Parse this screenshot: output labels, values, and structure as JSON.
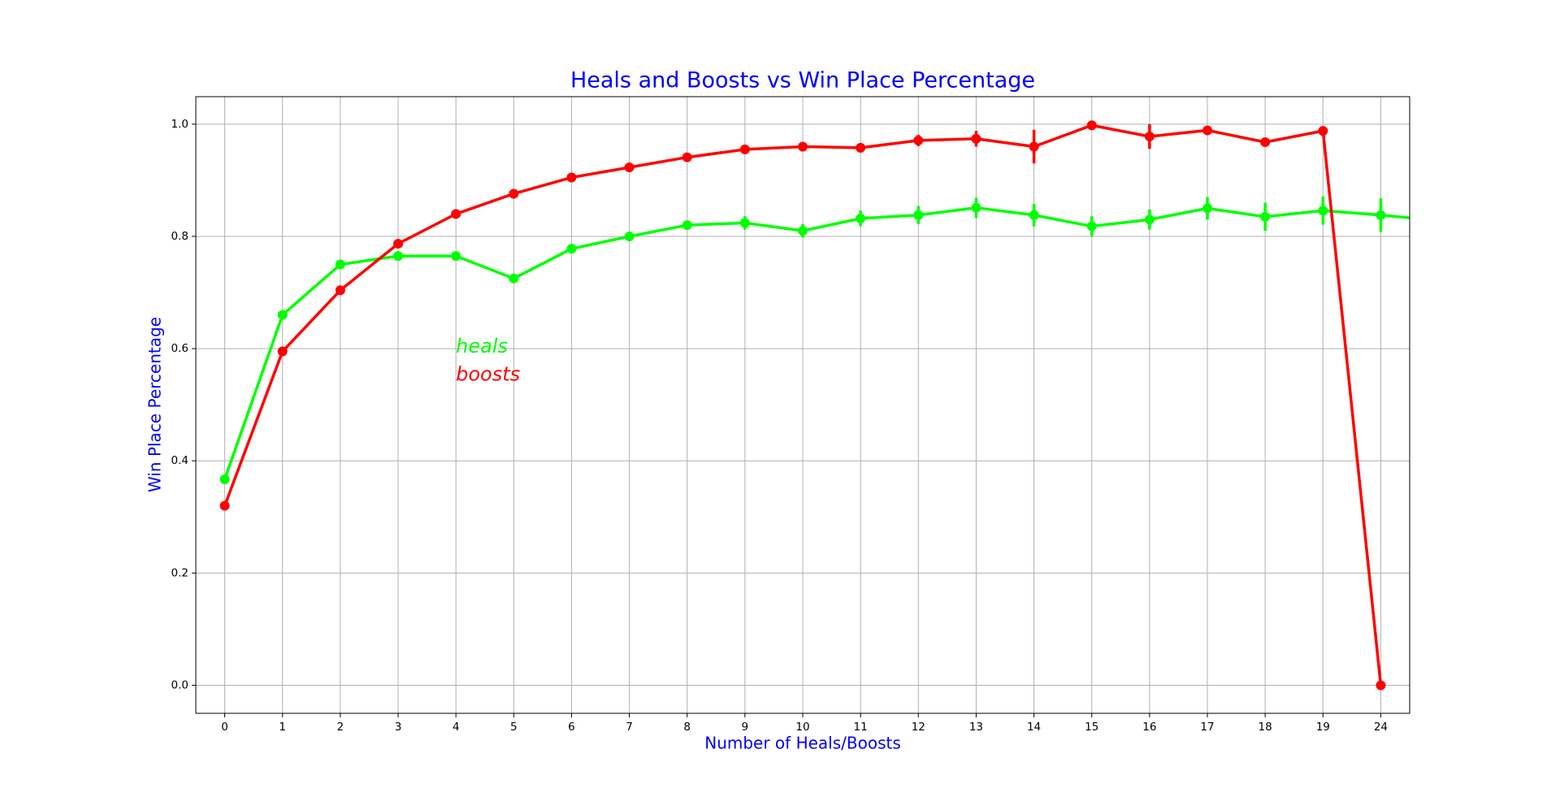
{
  "chart_data": {
    "type": "line",
    "title": "Heals and Boosts vs Win Place Percentage",
    "x_label": "Number of Heals/Boosts",
    "y_label": "Win Place Percentage",
    "annotations": [
      "heals",
      "boosts"
    ],
    "categories": [
      "0",
      "1",
      "2",
      "3",
      "4",
      "5",
      "6",
      "7",
      "8",
      "9",
      "10",
      "11",
      "12",
      "13",
      "14",
      "15",
      "16",
      "17",
      "18",
      "19",
      "24",
      null
    ],
    "series": [
      {
        "name": "heals",
        "color": "#00ff00",
        "values": [
          0.367,
          0.66,
          0.75,
          0.765,
          0.765,
          0.725,
          0.778,
          0.8,
          0.82,
          0.824,
          0.81,
          0.832,
          0.838,
          0.851,
          0.838,
          0.818,
          0.83,
          0.85,
          0.835,
          0.846,
          0.838,
          0.828
        ],
        "errors": [
          0.004,
          0.005,
          0.005,
          0.005,
          0.006,
          0.006,
          0.006,
          0.007,
          0.008,
          0.012,
          0.012,
          0.014,
          0.016,
          0.018,
          0.02,
          0.018,
          0.018,
          0.02,
          0.025,
          0.025,
          0.03,
          0.03
        ]
      },
      {
        "name": "boosts",
        "color": "#ff0000",
        "values": [
          0.32,
          0.595,
          0.704,
          0.787,
          0.84,
          0.876,
          0.905,
          0.923,
          0.941,
          0.955,
          0.96,
          0.958,
          0.971,
          0.974,
          0.96,
          0.998,
          0.978,
          0.989,
          0.968,
          0.988,
          0.0,
          null
        ],
        "errors": [
          0.003,
          0.003,
          0.003,
          0.003,
          0.003,
          0.003,
          0.003,
          0.004,
          0.005,
          0.006,
          0.007,
          0.008,
          0.01,
          0.014,
          0.03,
          0.005,
          0.022,
          0.007,
          0.007,
          0.007,
          0.005,
          null
        ]
      }
    ],
    "xlim": [
      -0.5,
      20.5
    ],
    "ylim": [
      -0.05,
      1.049
    ],
    "yticks": [
      {
        "value": 0,
        "label": "0.0"
      },
      {
        "value": 0.2,
        "label": "0.2"
      },
      {
        "value": 0.4,
        "label": "0.4"
      },
      {
        "value": 0.6,
        "label": "0.6"
      },
      {
        "value": 0.8,
        "label": "0.8"
      },
      {
        "value": 1,
        "label": "1.0"
      }
    ],
    "grid": true,
    "title_color": "#0000ff"
  }
}
